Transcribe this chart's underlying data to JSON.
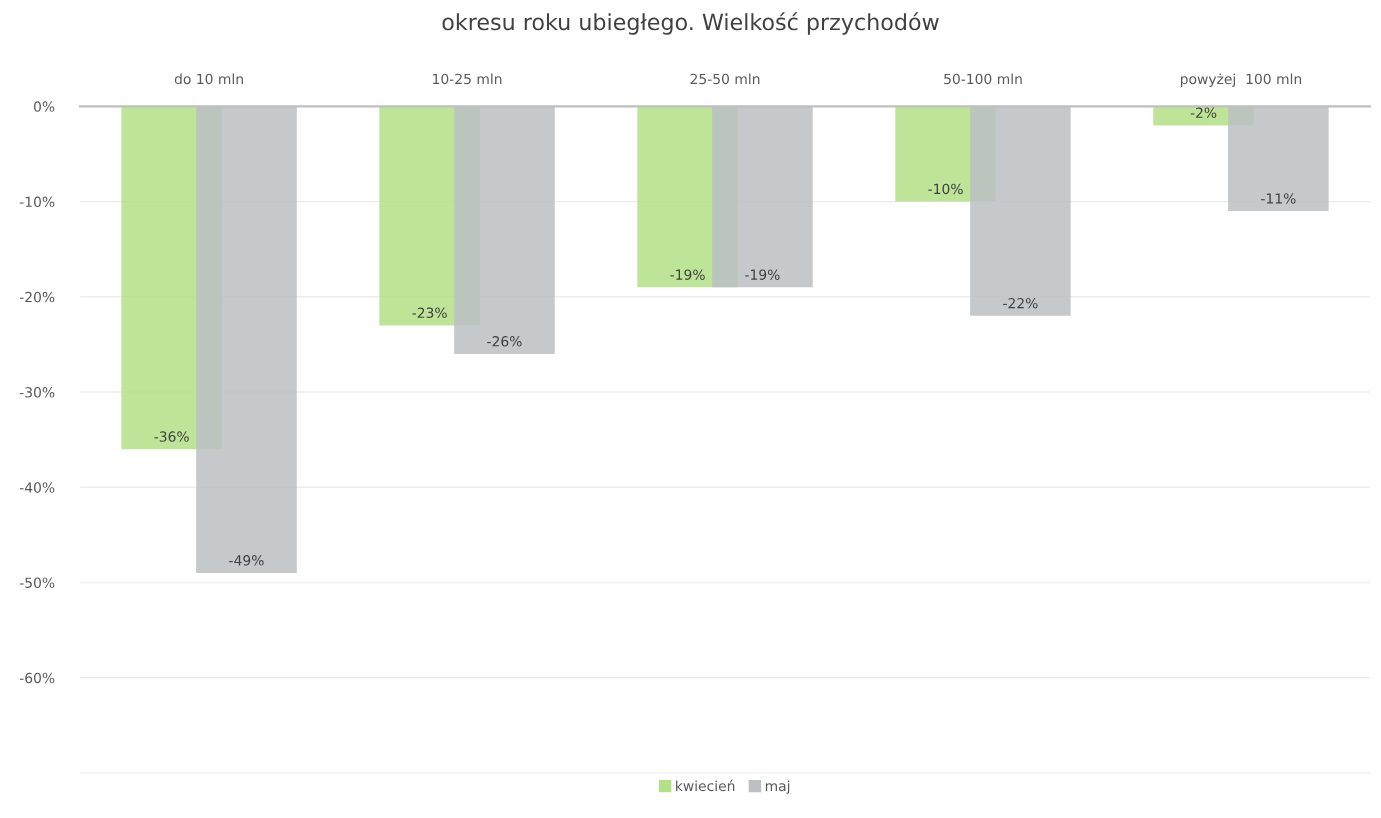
{
  "chart_data": {
    "type": "bar",
    "title": "okresu roku ubiegłego. Wielkość przychodów",
    "categories": [
      "do 10 mln",
      "10-25 mln",
      "25-50 mln",
      "50-100 mln",
      "powyżej  100 mln"
    ],
    "series": [
      {
        "name": "kwiecień",
        "color": "#b3df86",
        "values": [
          -36,
          -23,
          -19,
          -10,
          -2
        ],
        "value_labels": [
          "-36%",
          "-23%",
          "-19%",
          "-10%",
          "-2%"
        ]
      },
      {
        "name": "maj",
        "color": "#bcc0c3",
        "values": [
          -49,
          -26,
          -19,
          -22,
          -11
        ],
        "value_labels": [
          "-49%",
          "-26%",
          "-19%",
          "-22%",
          "-11%"
        ]
      }
    ],
    "ylim": [
      -70,
      0
    ],
    "yticks": [
      {
        "value": 0,
        "label": "0%"
      },
      {
        "value": -10,
        "label": "-10%"
      },
      {
        "value": -20,
        "label": "-20%"
      },
      {
        "value": -30,
        "label": "-30%"
      },
      {
        "value": -40,
        "label": "-40%"
      },
      {
        "value": -50,
        "label": "-50%"
      },
      {
        "value": -60,
        "label": "-60%"
      }
    ],
    "grid": "y",
    "legend": "bottom"
  }
}
